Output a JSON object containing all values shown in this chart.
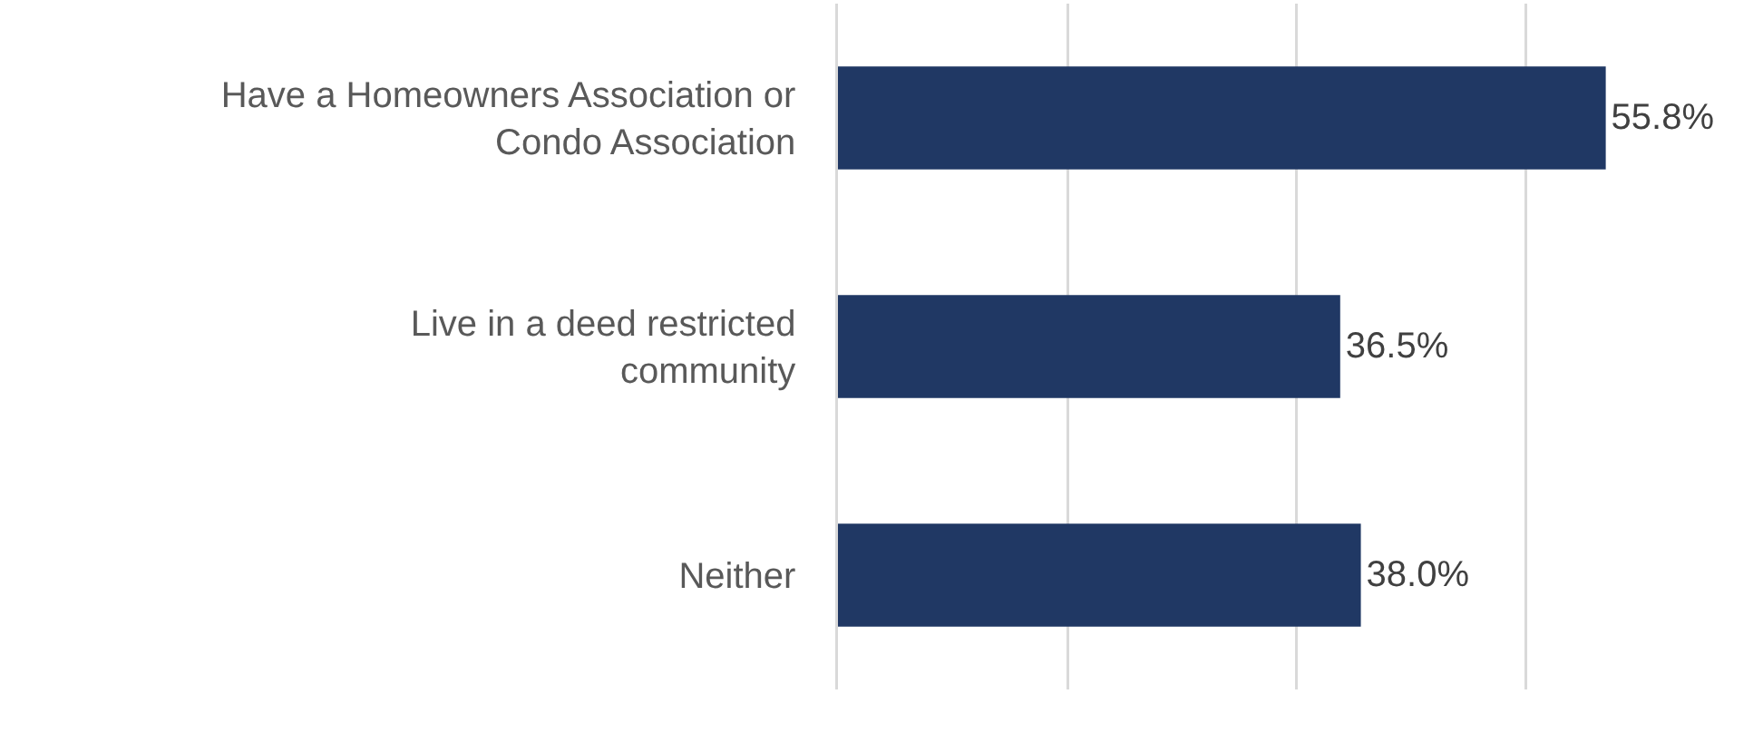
{
  "chart_data": {
    "type": "bar",
    "orientation": "horizontal",
    "categories": [
      "Have a Homeowners Association or Condo Association",
      "Live in a deed restricted community",
      "Neither"
    ],
    "values": [
      55.8,
      36.5,
      38.0
    ],
    "value_labels": [
      "55.8%",
      "36.5%",
      "38.0%"
    ],
    "color": "#203864",
    "xlim": [
      0,
      66.7
    ],
    "xticks": [
      {
        "value": 0,
        "label": null
      },
      {
        "value": 16.7,
        "label": null
      },
      {
        "value": 33.3,
        "label": null
      },
      {
        "value": 50,
        "label": null
      }
    ],
    "grid": "x",
    "tick_labels": "y"
  }
}
